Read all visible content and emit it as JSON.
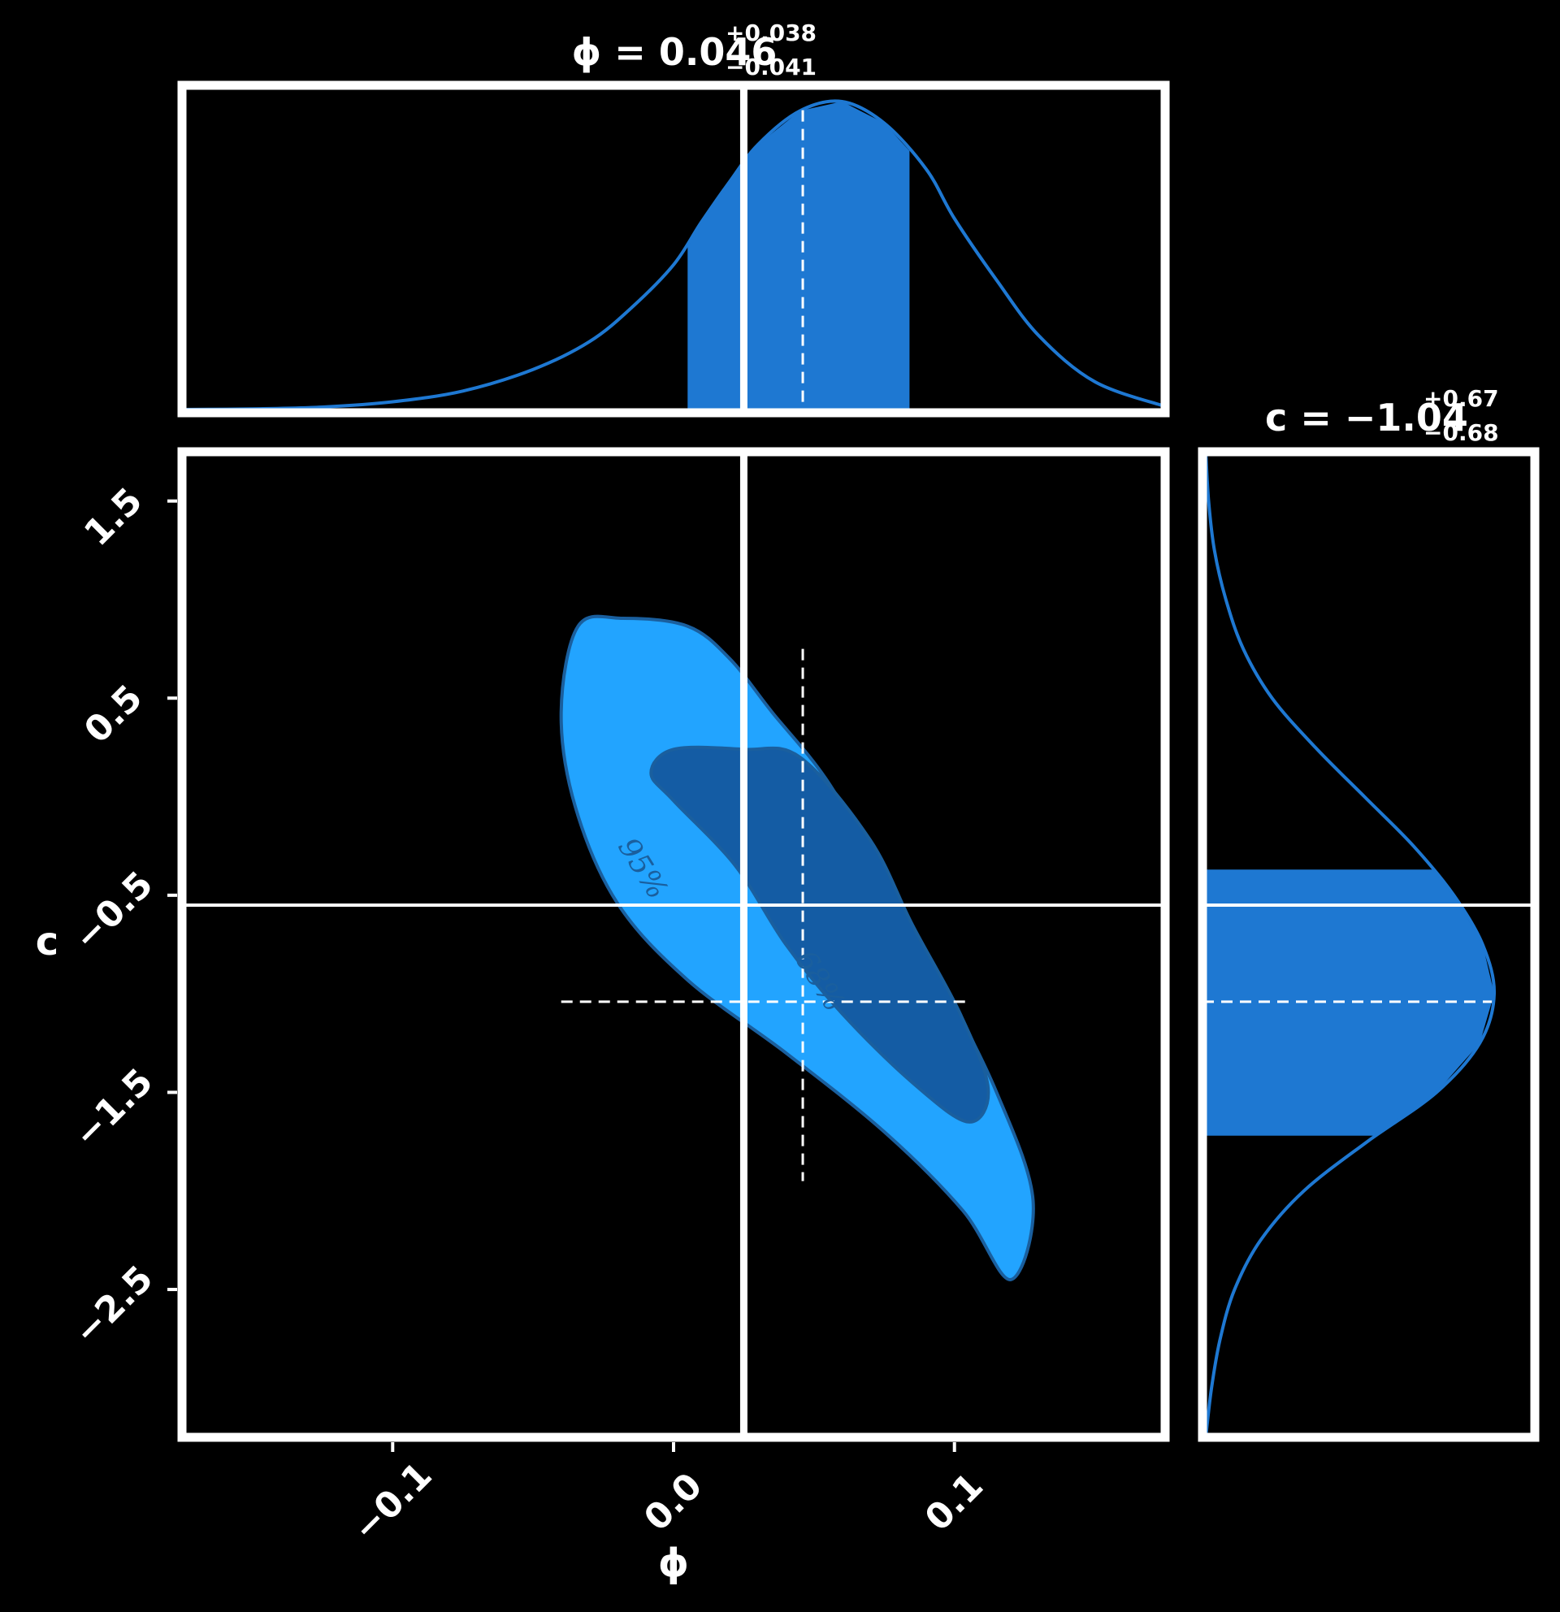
{
  "chart_data": {
    "type": "corner",
    "parameters": [
      {
        "name": "phi",
        "label": "ϕ",
        "title": "ϕ = 0.046",
        "title_upper": "+0.038",
        "title_lower": "−0.041",
        "median": 0.046,
        "interval": [
          0.005,
          0.084
        ],
        "truth": 0.025,
        "range": [
          -0.175,
          0.175
        ],
        "ticks": [
          -0.1,
          0.0,
          0.1
        ],
        "tick_labels": [
          "−0.1",
          "0.0",
          "0.1"
        ]
      },
      {
        "name": "c",
        "label": "c",
        "title": "c = −1.04",
        "title_upper": "+0.67",
        "title_lower": "−0.68",
        "median": -1.04,
        "interval": [
          -1.72,
          -0.37
        ],
        "truth": -0.55,
        "range": [
          -3.25,
          1.75
        ],
        "ticks": [
          1.5,
          0.5,
          -0.5,
          -1.5,
          -2.5
        ],
        "tick_labels": [
          "1.5",
          "0.5",
          "−0.5",
          "−1.5",
          "−2.5"
        ]
      }
    ],
    "marginal_phi": {
      "x": [
        -0.175,
        -0.15,
        -0.125,
        -0.1,
        -0.075,
        -0.05,
        -0.03,
        -0.015,
        0.0,
        0.01,
        0.02,
        0.03,
        0.045,
        0.06,
        0.075,
        0.09,
        0.1,
        0.115,
        0.13,
        0.15,
        0.175
      ],
      "density": [
        0.0,
        0.002,
        0.008,
        0.025,
        0.06,
        0.13,
        0.22,
        0.33,
        0.47,
        0.61,
        0.74,
        0.86,
        0.97,
        1.0,
        0.93,
        0.78,
        0.62,
        0.42,
        0.24,
        0.09,
        0.01
      ]
    },
    "marginal_c": {
      "x": [
        1.75,
        1.5,
        1.25,
        1.0,
        0.75,
        0.5,
        0.25,
        0.0,
        -0.25,
        -0.5,
        -0.75,
        -1.0,
        -1.25,
        -1.5,
        -1.75,
        -2.0,
        -2.25,
        -2.5,
        -2.75,
        -3.0,
        -3.25
      ],
      "density": [
        0.0,
        0.01,
        0.03,
        0.07,
        0.13,
        0.23,
        0.38,
        0.55,
        0.72,
        0.86,
        0.96,
        1.0,
        0.95,
        0.8,
        0.56,
        0.34,
        0.19,
        0.1,
        0.05,
        0.02,
        0.0
      ]
    },
    "contour_95": [
      [
        -0.034,
        0.865
      ],
      [
        -0.018,
        0.905
      ],
      [
        0.005,
        0.865
      ],
      [
        0.02,
        0.7
      ],
      [
        0.035,
        0.43
      ],
      [
        0.055,
        0.075
      ],
      [
        0.075,
        -0.43
      ],
      [
        0.095,
        -0.93
      ],
      [
        0.115,
        -1.5
      ],
      [
        0.128,
        -2.05
      ],
      [
        0.12,
        -2.45
      ],
      [
        0.103,
        -2.1
      ],
      [
        0.075,
        -1.7
      ],
      [
        0.04,
        -1.3
      ],
      [
        0.005,
        -0.93
      ],
      [
        -0.02,
        -0.54
      ],
      [
        -0.035,
        -0.05
      ],
      [
        -0.04,
        0.43
      ]
    ],
    "contour_68": [
      [
        0.025,
        0.24
      ],
      [
        0.045,
        0.2
      ],
      [
        0.07,
        -0.22
      ],
      [
        0.085,
        -0.65
      ],
      [
        0.102,
        -1.1
      ],
      [
        0.112,
        -1.48
      ],
      [
        0.105,
        -1.65
      ],
      [
        0.085,
        -1.45
      ],
      [
        0.06,
        -1.1
      ],
      [
        0.04,
        -0.75
      ],
      [
        0.022,
        -0.35
      ],
      [
        0.0,
        -0.02
      ],
      [
        -0.008,
        0.12
      ],
      [
        0.0,
        0.24
      ]
    ],
    "contour_labels": [
      "95%",
      "68%"
    ],
    "colors": {
      "background": "#000000",
      "frame": "#ffffff",
      "truth_line": "#ffffff",
      "marginal": "#1e78d2",
      "contour_95": "#22a4ff",
      "contour_68": "#145ca4",
      "contour_edge": "#1a5f9e"
    }
  }
}
